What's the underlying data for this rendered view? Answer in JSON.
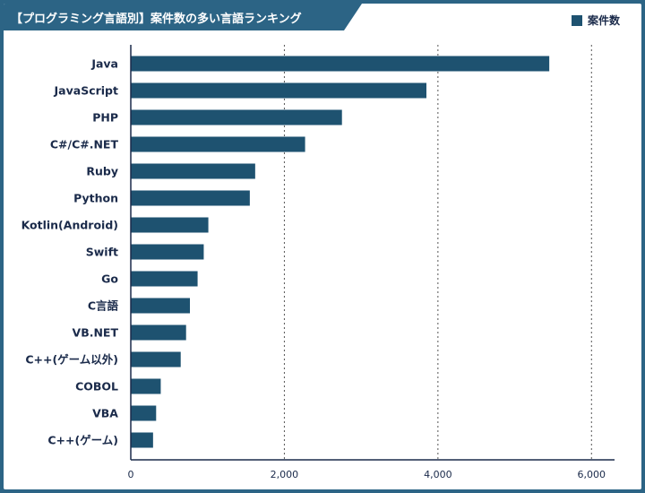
{
  "chart_data": {
    "type": "bar",
    "orientation": "horizontal",
    "title": "【プログラミング言語別】案件数の多い言語ランキング",
    "legend": "案件数",
    "categories": [
      "Java",
      "JavaScript",
      "PHP",
      "C#/C#.NET",
      "Ruby",
      "Python",
      "Kotlin(Android)",
      "Swift",
      "Go",
      "C言語",
      "VB.NET",
      "C++(ゲーム以外)",
      "COBOL",
      "VBA",
      "C++(ゲーム)"
    ],
    "values": [
      5450,
      3850,
      2750,
      2270,
      1620,
      1550,
      1010,
      950,
      870,
      770,
      720,
      650,
      390,
      330,
      290
    ],
    "xlim": [
      0,
      6300
    ],
    "xticks": [
      0,
      2000,
      4000,
      6000
    ],
    "xtick_labels": [
      "0",
      "2,000",
      "4,000",
      "6,000"
    ],
    "bar_color": "#1e5270",
    "grid": true
  }
}
